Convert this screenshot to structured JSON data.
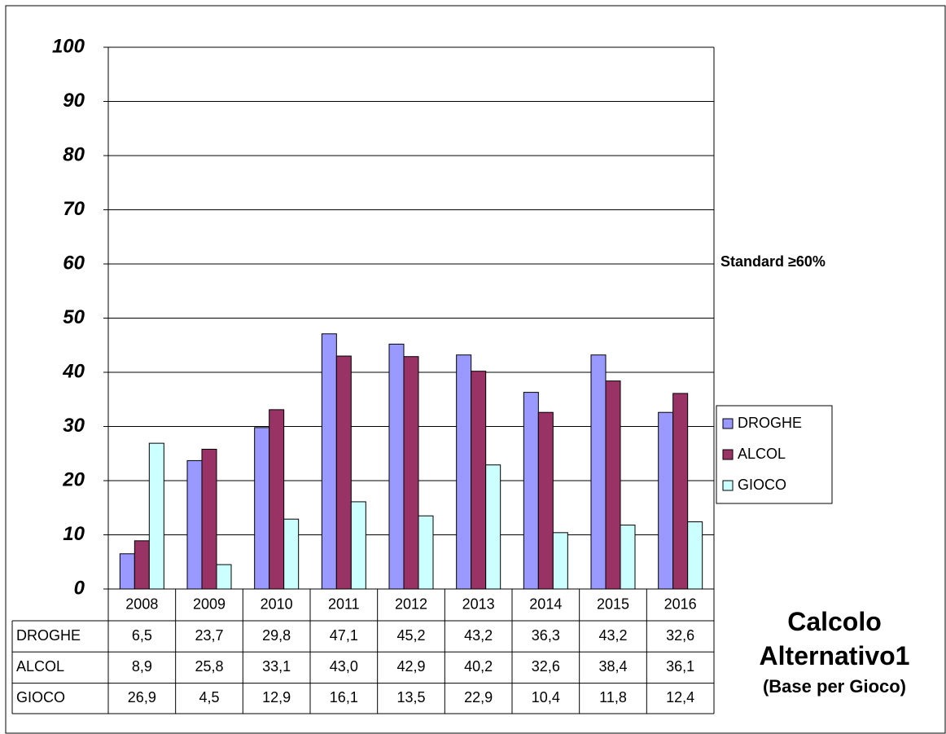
{
  "chart_data": {
    "type": "bar",
    "title": "Calcolo Alternativo1",
    "subtitle": "(Base per Gioco)",
    "annotation": "Standard ≥60%",
    "categories": [
      "2008",
      "2009",
      "2010",
      "2011",
      "2012",
      "2013",
      "2014",
      "2015",
      "2016"
    ],
    "series": [
      {
        "name": "DROGHE",
        "color": "#9999ff",
        "values": [
          6.5,
          23.7,
          29.8,
          47.1,
          45.2,
          43.2,
          36.3,
          43.2,
          32.6
        ],
        "value_labels": [
          "6,5",
          "23,7",
          "29,8",
          "47,1",
          "45,2",
          "43,2",
          "36,3",
          "43,2",
          "32,6"
        ]
      },
      {
        "name": "ALCOL",
        "color": "#993366",
        "values": [
          8.9,
          25.8,
          33.1,
          43.0,
          42.9,
          40.2,
          32.6,
          38.4,
          36.1
        ],
        "value_labels": [
          "8,9",
          "25,8",
          "33,1",
          "43,0",
          "42,9",
          "40,2",
          "32,6",
          "38,4",
          "36,1"
        ]
      },
      {
        "name": "GIOCO",
        "color": "#ccffff",
        "values": [
          26.9,
          4.5,
          12.9,
          16.1,
          13.5,
          22.9,
          10.4,
          11.8,
          12.4
        ],
        "value_labels": [
          "26,9",
          "4,5",
          "12,9",
          "16,1",
          "13,5",
          "22,9",
          "10,4",
          "11,8",
          "12,4"
        ]
      }
    ],
    "ylim": [
      0,
      100
    ],
    "yticks": [
      0,
      10,
      20,
      30,
      40,
      50,
      60,
      70,
      80,
      90,
      100
    ],
    "grid": true,
    "legend": "right"
  }
}
